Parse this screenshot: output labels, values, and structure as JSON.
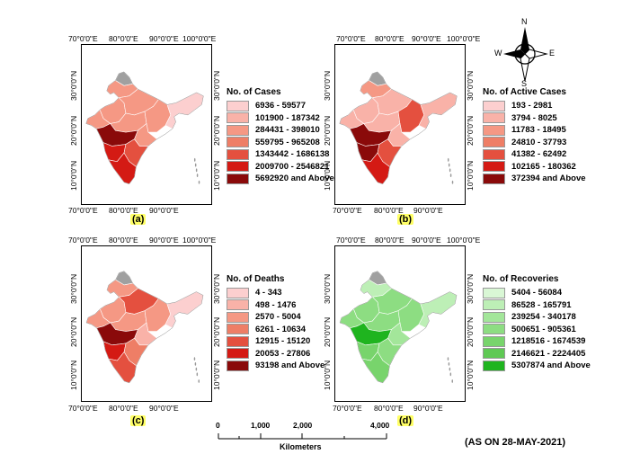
{
  "axes": {
    "lon_top": [
      "70°0'0\"E",
      "80°0'0\"E",
      "90°0'0\"E",
      "100°0'0\"E"
    ],
    "lon_bottom": [
      "70°0'0\"E",
      "80°0'0\"E",
      "90°0'0\"E"
    ],
    "lat": [
      "30°0'0\"N",
      "20°0'0\"N",
      "10°0'0\"N"
    ]
  },
  "panels": [
    {
      "tag": "(a)",
      "legend_title": "No. of Cases",
      "classes": [
        "6936 - 59577",
        "101900 - 187342",
        "284431 - 398010",
        "559795 - 965208",
        "1343442 - 1686138",
        "2009700 - 2546821",
        "5692920 and Above"
      ],
      "colors": [
        "#fccfcf",
        "#f9b2a8",
        "#f59884",
        "#ee7e66",
        "#e4503f",
        "#d41a14",
        "#8a0a0a"
      ]
    },
    {
      "tag": "(b)",
      "legend_title": "No. of Active Cases",
      "classes": [
        "193 - 2981",
        "3794 - 8025",
        "11783 - 18495",
        "24810 - 37793",
        "41382 - 62492",
        "102165 - 180362",
        "372394 and Above"
      ],
      "colors": [
        "#fccfcf",
        "#f9b2a8",
        "#f59884",
        "#ee7e66",
        "#e4503f",
        "#d41a14",
        "#8a0a0a"
      ]
    },
    {
      "tag": "(c)",
      "legend_title": "No. of Deaths",
      "classes": [
        "4 - 343",
        "498 - 1476",
        "2570 - 5004",
        "6261 - 10634",
        "12915 - 15120",
        "20053 - 27806",
        "93198 and Above"
      ],
      "colors": [
        "#fccfcf",
        "#f9b2a8",
        "#f59884",
        "#ee7e66",
        "#e4503f",
        "#d41a14",
        "#8a0a0a"
      ]
    },
    {
      "tag": "(d)",
      "legend_title": "No. of Recoveries",
      "classes": [
        "5404 - 56084",
        "86528 - 165791",
        "239254 - 340178",
        "500651 - 905361",
        "1218516 - 1674539",
        "2146621 - 2224405",
        "5307874 and Above"
      ],
      "colors": [
        "#d9f7d5",
        "#bdefb6",
        "#a3e69a",
        "#8ddd82",
        "#78d46c",
        "#5fc954",
        "#1fb41f"
      ]
    }
  ],
  "north_arrow": {
    "n": "N",
    "s": "S",
    "e": "E",
    "w": "W"
  },
  "scale": {
    "ticks": [
      "0",
      "1,000",
      "2,000",
      "4,000"
    ],
    "unit": "Kilometers"
  },
  "note": "(AS ON 28-MAY-2021)"
}
